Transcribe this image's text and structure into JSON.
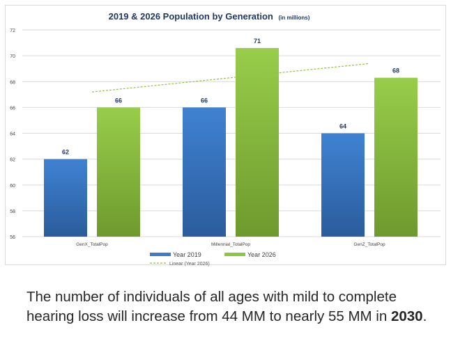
{
  "chart_data": {
    "type": "bar",
    "title": "2019 & 2026 Population by Generation",
    "title_note": "(in millions)",
    "categories": [
      "GenX_TotalPop",
      "Millennial_TotalPop",
      "GenZ_TotalPop"
    ],
    "series": [
      {
        "name": "Year 2019",
        "values": [
          62,
          66,
          64
        ],
        "data_labels": [
          "62",
          "66",
          "64"
        ],
        "color": "#3D7CC9"
      },
      {
        "name": "Year 2026",
        "values": [
          66,
          70.6,
          68.3
        ],
        "data_labels": [
          "66",
          "71",
          "68"
        ],
        "color": "#8DC63F"
      }
    ],
    "trendline": {
      "name": "Linear (Year 2026)",
      "start": 67.2,
      "end": 69.4,
      "color": "#8DC63F"
    },
    "ylim": [
      56,
      72
    ],
    "yticks": [
      "56",
      "58",
      "60",
      "62",
      "64",
      "66",
      "68",
      "70",
      "72"
    ],
    "grid": true,
    "legend_position": "bottom",
    "title_color": "#1F3864"
  },
  "caption": {
    "text_before": "The number of individuals of all ages with mild to complete hearing loss will increase from 44 MM to nearly 55 MM in ",
    "year": "2030",
    "text_after": "."
  }
}
